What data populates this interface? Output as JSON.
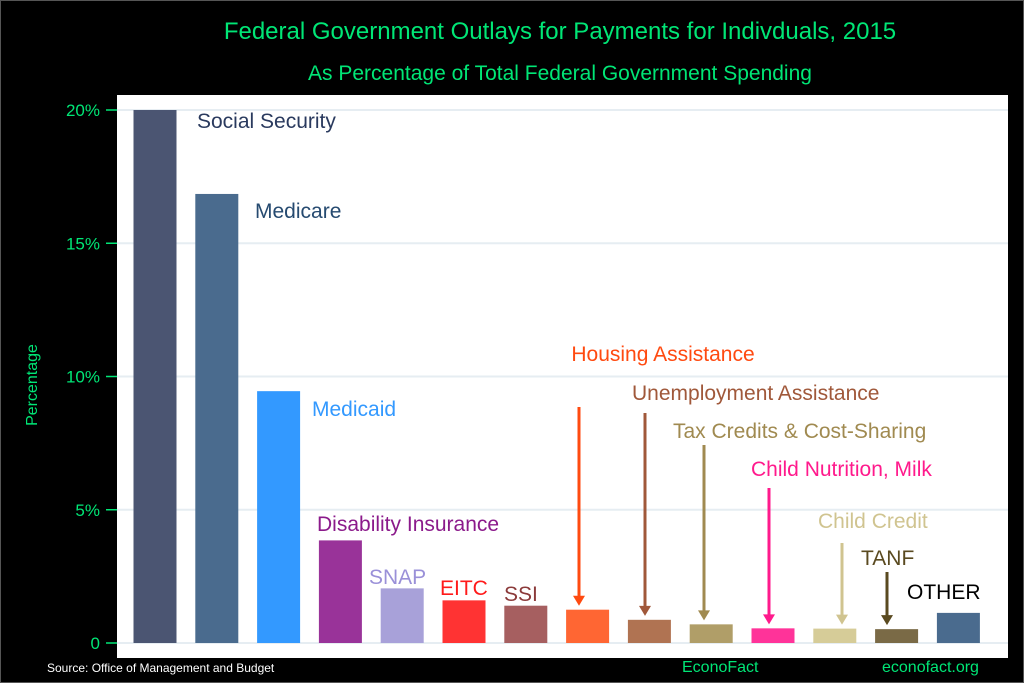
{
  "chart_data": {
    "type": "bar",
    "title": "Federal Government Outlays for Payments for Indivduals, 2015",
    "subtitle": "As Percentage of Total Federal Government Spending",
    "xlabel": "",
    "ylabel": "Percentage",
    "ylim": [
      0,
      20
    ],
    "yticks": [
      0,
      5,
      10,
      15,
      20
    ],
    "ytick_labels": [
      "0",
      "5%",
      "10%",
      "15%",
      "20%"
    ],
    "grid": true,
    "categories": [
      "Social Security",
      "Medicare",
      "Medicaid",
      "Disability Insurance",
      "SNAP",
      "EITC",
      "SSI",
      "Housing Assistance",
      "Unemployment Assistance",
      "Tax Credits & Cost-Sharing",
      "Child Nutrition, Milk",
      "Child Credit",
      "TANF",
      "OTHER"
    ],
    "values": [
      20.0,
      16.85,
      9.45,
      3.85,
      2.05,
      1.6,
      1.4,
      1.25,
      0.87,
      0.7,
      0.55,
      0.54,
      0.52,
      1.13
    ],
    "bar_colors": [
      "#4b5572",
      "#4a6b8e",
      "#3399ff",
      "#993399",
      "#a8a1d9",
      "#ff3333",
      "#a65f60",
      "#ff6633",
      "#b07352",
      "#b09e68",
      "#ff3399",
      "#d6cc98",
      "#7a6a46",
      "#4a6b8e"
    ],
    "label_colors": [
      "#2a3a5e",
      "#264a70",
      "#3399ff",
      "#8b1a8b",
      "#9a90d8",
      "#ff1a1a",
      "#8b3a3a",
      "#ff4a10",
      "#a0583a",
      "#a08a50",
      "#ff1a8c",
      "#d0c490",
      "#5a4a20",
      "#000000"
    ],
    "annotations_arrows": [
      false,
      false,
      false,
      false,
      false,
      false,
      false,
      true,
      true,
      true,
      true,
      true,
      true,
      false
    ]
  },
  "footer": {
    "source": "Source: Office of Management and Budget",
    "brand": "EconoFact",
    "site": "econofact.org"
  }
}
